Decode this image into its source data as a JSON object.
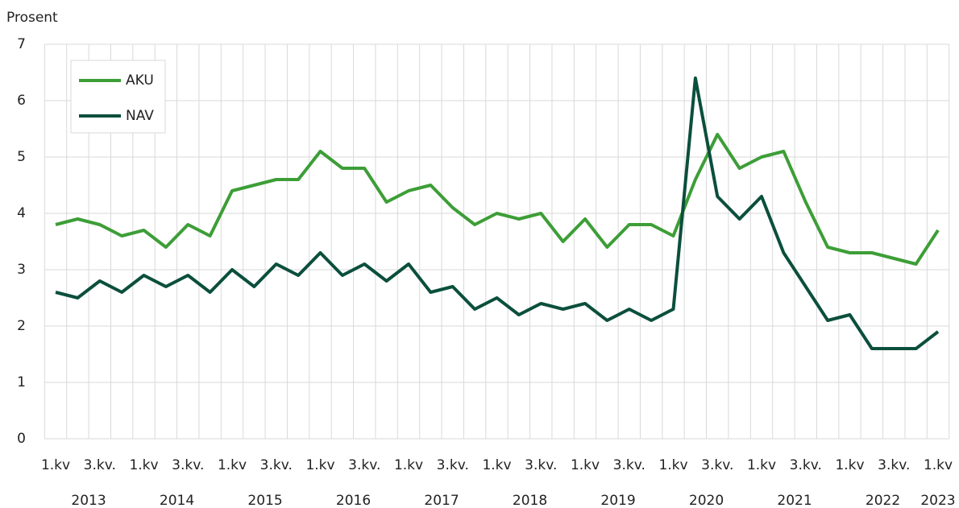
{
  "chart_data": {
    "type": "line",
    "y_label": "Prosent",
    "categories": [
      "1.kv",
      null,
      "3.kv.",
      null,
      "1.kv",
      null,
      "3.kv.",
      null,
      "1.kv",
      null,
      "3.kv.",
      null,
      "1.kv",
      null,
      "3.kv.",
      null,
      "1.kv",
      null,
      "3.kv.",
      null,
      "1.kv",
      null,
      "3.kv.",
      null,
      "1.kv",
      null,
      "3.kv.",
      null,
      "1.kv",
      null,
      "3.kv.",
      null,
      "1.kv",
      null,
      "3.kv.",
      null,
      "1.kv",
      null,
      "3.kv.",
      null,
      "1.kv"
    ],
    "years": [
      "2013",
      "2014",
      "2015",
      "2016",
      "2017",
      "2018",
      "2019",
      "2020",
      "2021",
      "2022",
      "2023"
    ],
    "series": [
      {
        "name": "AKU",
        "color": "#3d9e37",
        "values": [
          3.8,
          3.9,
          3.8,
          3.6,
          3.7,
          3.4,
          3.8,
          3.6,
          4.4,
          4.5,
          4.6,
          4.6,
          5.1,
          4.8,
          4.8,
          4.2,
          4.4,
          4.5,
          4.1,
          3.8,
          4.0,
          3.9,
          4.0,
          3.5,
          3.9,
          3.4,
          3.8,
          3.8,
          3.6,
          4.6,
          5.4,
          4.8,
          5.0,
          5.1,
          4.2,
          3.4,
          3.3,
          3.3,
          3.2,
          3.1,
          3.7
        ]
      },
      {
        "name": "NAV",
        "color": "#0b4f3c",
        "values": [
          2.6,
          2.5,
          2.8,
          2.6,
          2.9,
          2.7,
          2.9,
          2.6,
          3.0,
          2.7,
          3.1,
          2.9,
          3.3,
          2.9,
          3.1,
          2.8,
          3.1,
          2.6,
          2.7,
          2.3,
          2.5,
          2.2,
          2.4,
          2.3,
          2.4,
          2.1,
          2.3,
          2.1,
          2.3,
          6.4,
          4.3,
          3.9,
          4.3,
          3.3,
          2.7,
          2.1,
          2.2,
          1.6,
          1.6,
          1.6,
          1.9
        ]
      }
    ],
    "ylim": [
      0,
      7
    ],
    "yticks": [
      0,
      1,
      2,
      3,
      4,
      5,
      6,
      7
    ],
    "grid": true,
    "legend": "upper left"
  }
}
